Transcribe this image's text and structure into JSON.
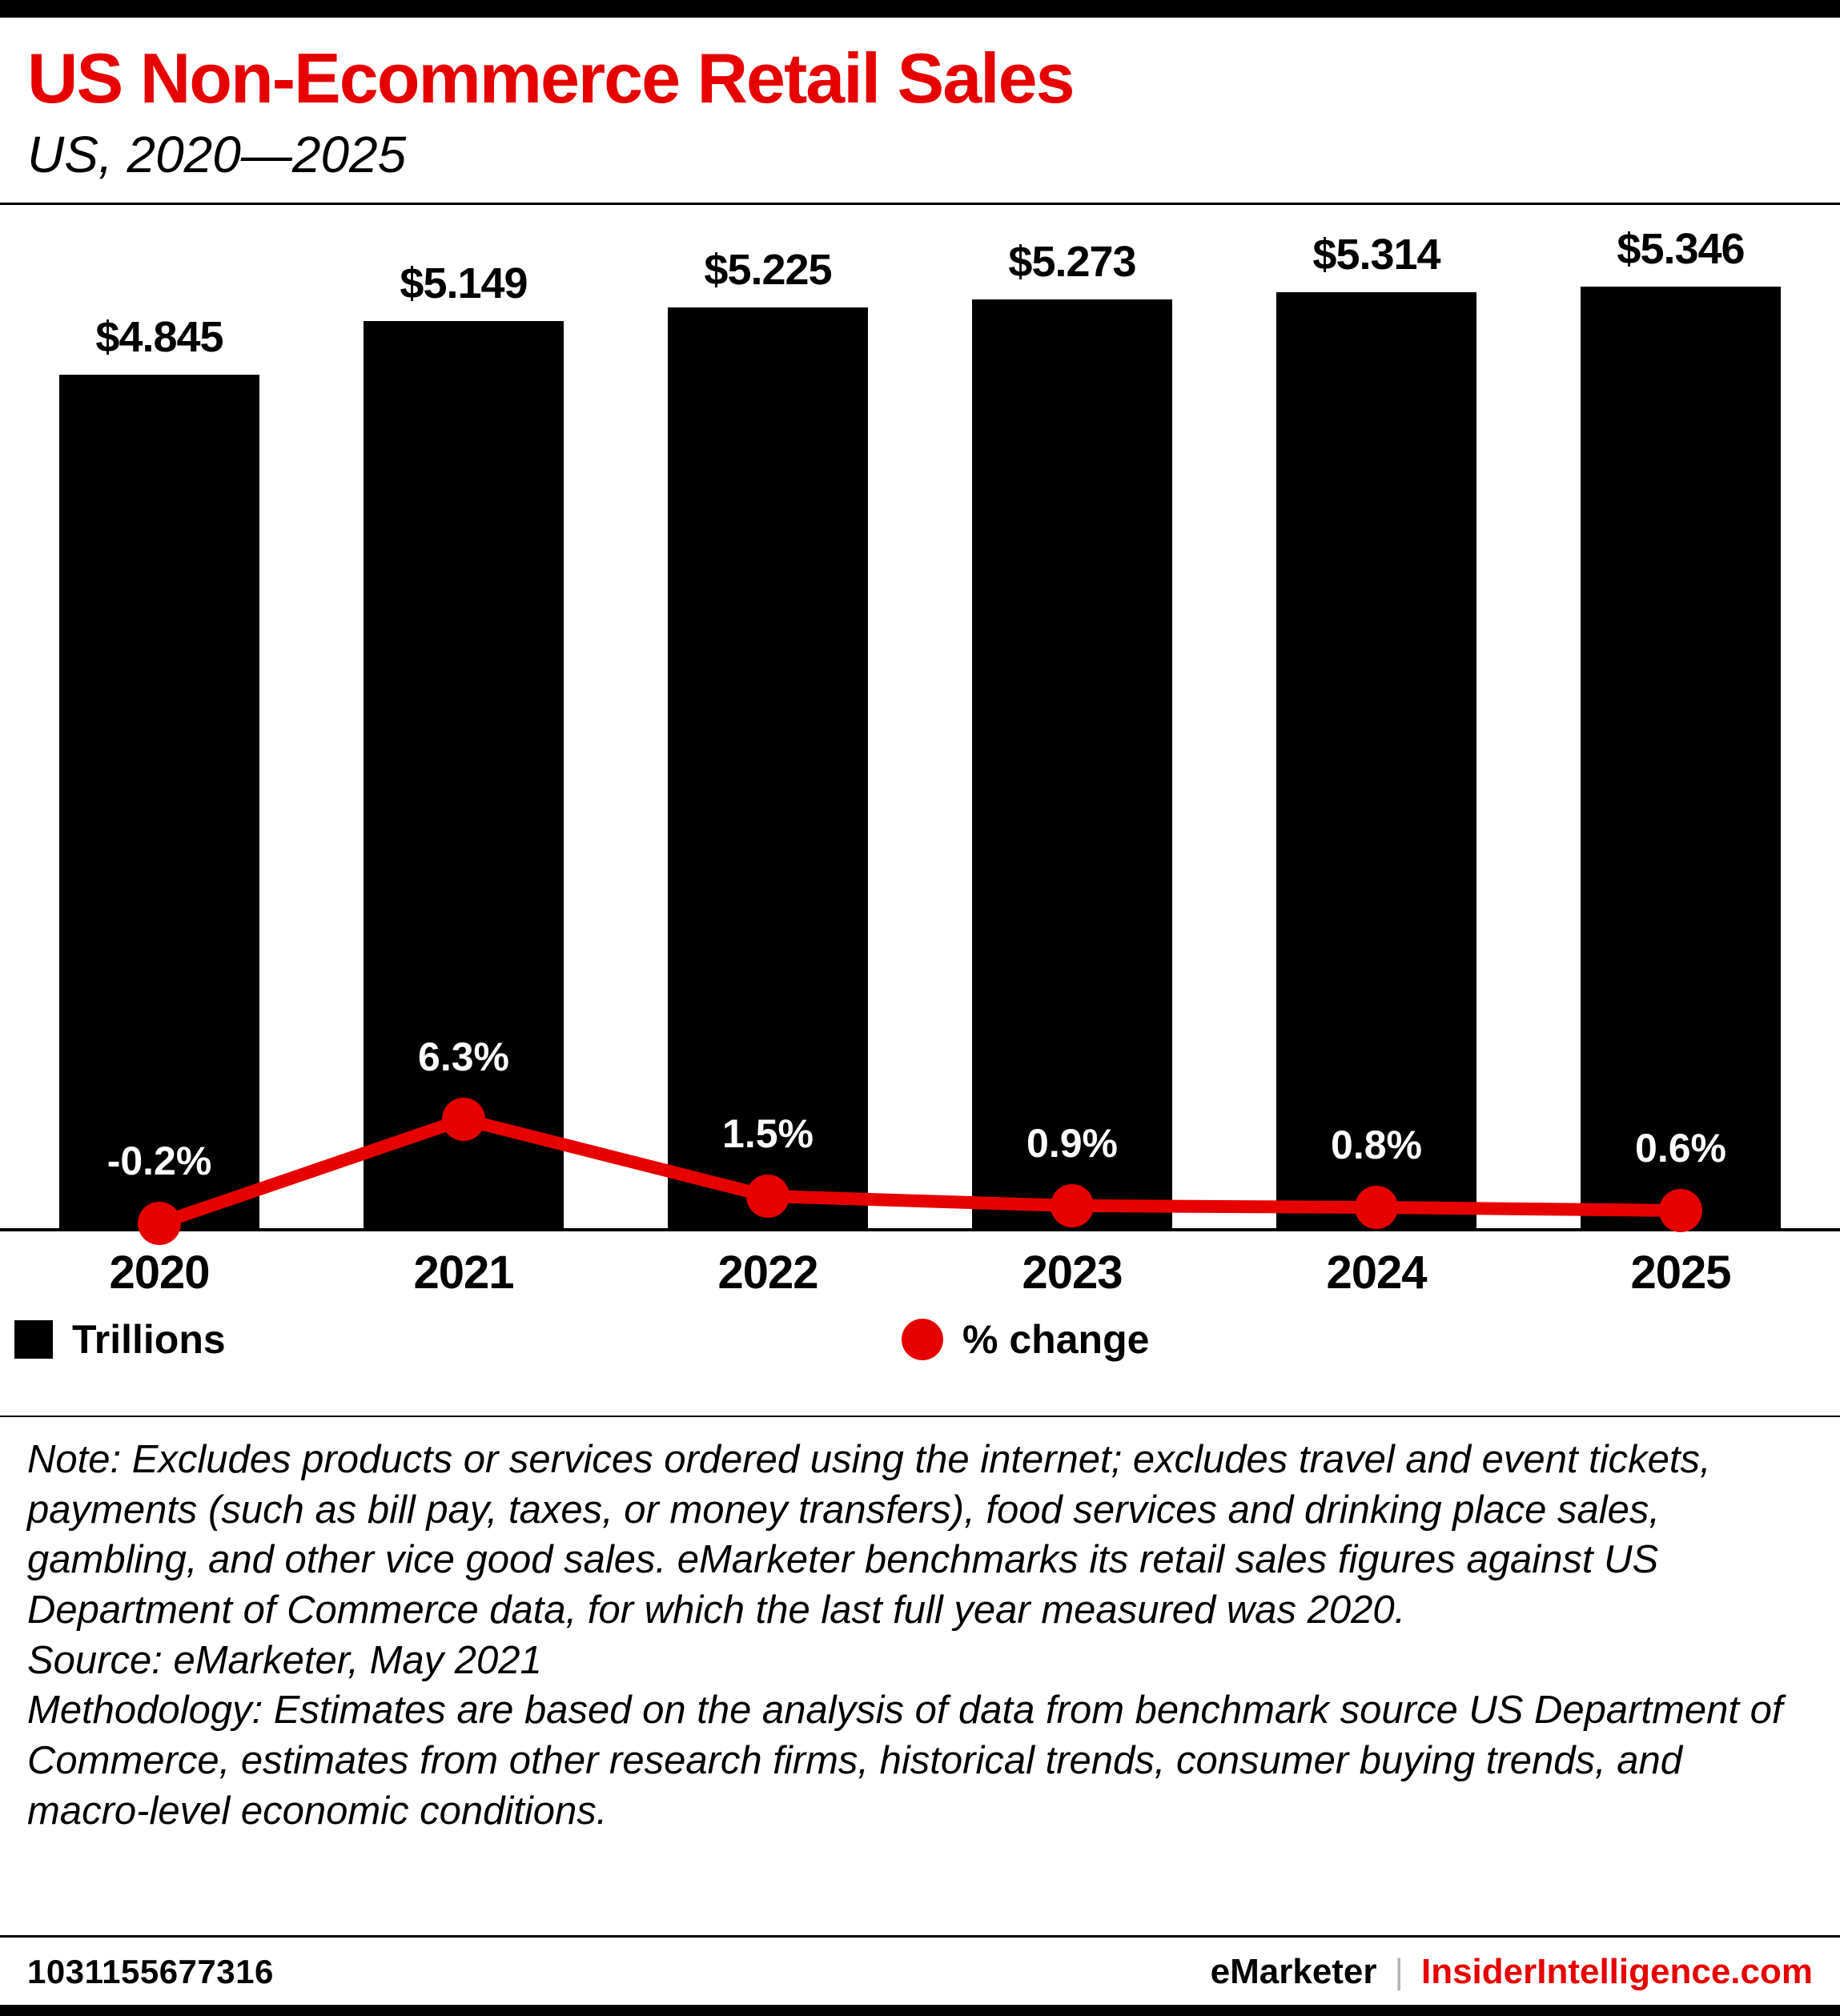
{
  "colors": {
    "accent": "#e60000",
    "bar": "#000000",
    "text": "#000000",
    "background": "#ffffff"
  },
  "header": {
    "title": "US Non-Ecommerce Retail Sales",
    "subtitle": "US, 2020—2025"
  },
  "chart_data": {
    "type": "bar",
    "title": "US Non-Ecommerce Retail Sales",
    "subtitle": "US, 2020—2025",
    "categories": [
      "2020",
      "2021",
      "2022",
      "2023",
      "2024",
      "2025"
    ],
    "series": [
      {
        "name": "Trillions",
        "type": "bar",
        "unit": "US$ trillions",
        "values": [
          4.845,
          5.149,
          5.225,
          5.273,
          5.314,
          5.346
        ],
        "labels": [
          "$4.845",
          "$5.149",
          "$5.225",
          "$5.273",
          "$5.314",
          "$5.346"
        ]
      },
      {
        "name": "% change",
        "type": "line",
        "unit": "percent",
        "values": [
          -0.2,
          6.3,
          1.5,
          0.9,
          0.8,
          0.6
        ],
        "labels": [
          "-0.2%",
          "6.3%",
          "1.5%",
          "0.9%",
          "0.8%",
          "0.6%"
        ]
      }
    ],
    "grid": false,
    "legend_position": "bottom",
    "bar_color": "#000000",
    "line_color": "#e60000"
  },
  "legend": {
    "bars": "Trillions",
    "line": "% change"
  },
  "notes": {
    "note": "Note: Excludes products or services ordered using the internet; excludes travel and event tickets, payments (such as bill pay, taxes, or money transfers), food services and drinking place sales, gambling, and other vice good sales. eMarketer benchmarks its retail sales figures against US Department of Commerce data, for which the last full year measured was 2020.",
    "source": "Source: eMarketer, May 2021",
    "methodology": "Methodology: Estimates are based on the analysis of data from benchmark source US Department of Commerce, estimates from other research firms, historical trends, consumer buying trends, and macro-level economic conditions."
  },
  "footer": {
    "id": "1031155677316",
    "brand_left": "eMarketer",
    "separator": "|",
    "brand_right": "InsiderIntelligence.com"
  }
}
